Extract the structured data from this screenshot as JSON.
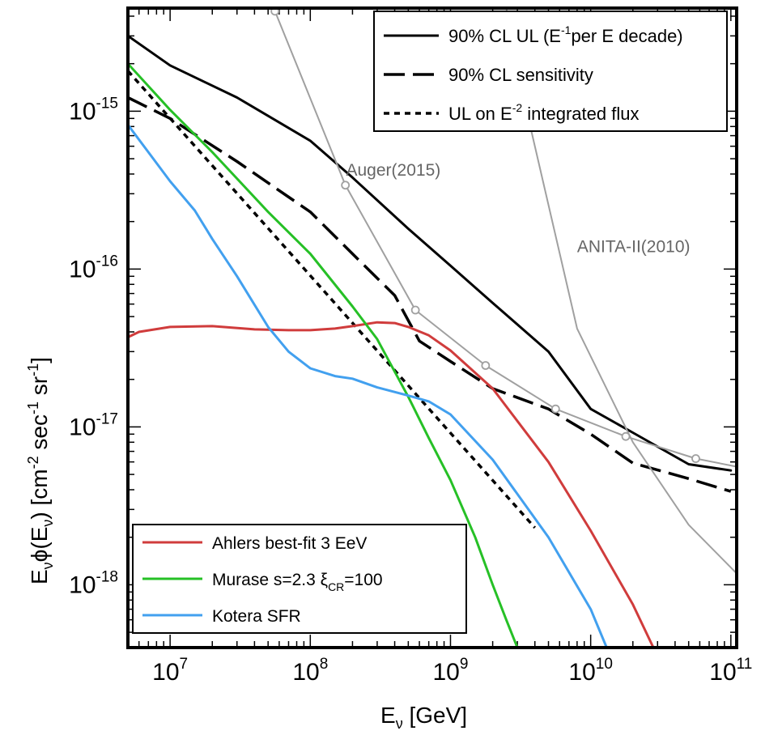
{
  "chart_data": {
    "type": "line",
    "xlabel": {
      "main": "E",
      "sub": "ν",
      "rest": " [GeV]"
    },
    "ylabel": {
      "p1": "E",
      "s1": "ν",
      "p2": "ϕ(E",
      "s2": "ν",
      "p3": ") [cm",
      "e1": "-2",
      "p4": " sec",
      "e2": "-1",
      "p5": " sr",
      "e3": "-1",
      "p6": "]"
    },
    "x_scale": "log",
    "y_scale": "log",
    "xlim": [
      5000000,
      110000000000
    ],
    "ylim": [
      4e-19,
      4.5e-15
    ],
    "x_ticks": [
      {
        "value": 10000000,
        "base": "10",
        "exp": "7"
      },
      {
        "value": 100000000,
        "base": "10",
        "exp": "8"
      },
      {
        "value": 1000000000,
        "base": "10",
        "exp": "9"
      },
      {
        "value": 10000000000,
        "base": "10",
        "exp": "10"
      },
      {
        "value": 100000000000,
        "base": "10",
        "exp": "11"
      }
    ],
    "y_ticks": [
      {
        "value": 1e-18,
        "base": "10",
        "exp": "-18"
      },
      {
        "value": 1e-17,
        "base": "10",
        "exp": "-17"
      },
      {
        "value": 1e-16,
        "base": "10",
        "exp": "-16"
      },
      {
        "value": 1e-15,
        "base": "10",
        "exp": "-15"
      }
    ],
    "legend_top": [
      {
        "series": "ul",
        "parts": [
          {
            "t": "90% CL UL (E"
          },
          {
            "t": "-1",
            "sup": true
          },
          {
            "t": "per E decade)"
          }
        ]
      },
      {
        "series": "sens",
        "parts": [
          {
            "t": "90% CL sensitivity"
          }
        ]
      },
      {
        "series": "int",
        "parts": [
          {
            "t": "UL on E"
          },
          {
            "t": "-2",
            "sup": true
          },
          {
            "t": " integrated flux"
          }
        ]
      }
    ],
    "legend_bottom": [
      {
        "series": "ahlers",
        "parts": [
          {
            "t": "Ahlers best-fit 3 EeV"
          }
        ]
      },
      {
        "series": "murase",
        "parts": [
          {
            "t": "Murase s=2.3 ξ"
          },
          {
            "t": "CR",
            "sub": true
          },
          {
            "t": "=100"
          }
        ]
      },
      {
        "series": "kotera",
        "parts": [
          {
            "t": "Kotera SFR"
          }
        ]
      }
    ],
    "annotations": [
      {
        "text": "Auger(2015)",
        "x": 180000000,
        "y": 3.9e-16
      },
      {
        "text": "ANITA-II(2010)",
        "x": 8000000000,
        "y": 1.28e-16
      }
    ],
    "series": [
      {
        "id": "ul",
        "color": "#000000",
        "style": "solid",
        "width": 3,
        "markers": false,
        "x": [
          5000000,
          10000000,
          30000000,
          100000000,
          200000000,
          500000000,
          1000000000,
          2000000000,
          5000000000,
          10000000000,
          20000000000,
          50000000000,
          100000000000
        ],
        "y": [
          3e-15,
          1.95e-15,
          1.22e-15,
          6.5e-16,
          3.8e-16,
          1.8e-16,
          1.05e-16,
          6.1e-17,
          3e-17,
          1.3e-17,
          9.2e-18,
          5.8e-18,
          5.3e-18
        ]
      },
      {
        "id": "sens",
        "color": "#000000",
        "style": "dashed",
        "width": 3.5,
        "markers": false,
        "x": [
          5000000,
          10000000,
          30000000,
          100000000,
          200000000,
          400000000,
          600000000,
          1000000000,
          2000000000,
          5000000000,
          10000000000,
          20000000000,
          50000000000,
          100000000000
        ],
        "y": [
          1.22e-15,
          9e-16,
          4.8e-16,
          2.3e-16,
          1.25e-16,
          6.8e-17,
          3.5e-17,
          2.6e-17,
          1.75e-17,
          1.3e-17,
          9e-18,
          5.9e-18,
          4.7e-18,
          3.9e-18
        ]
      },
      {
        "id": "int",
        "color": "#000000",
        "style": "dotted",
        "width": 3.5,
        "markers": false,
        "x": [
          5000000,
          4000000000
        ],
        "y": [
          1.8e-15,
          2.3e-18
        ]
      },
      {
        "id": "auger",
        "color": "#a0a0a0",
        "style": "solid",
        "width": 2,
        "markers": true,
        "x": [
          56000000,
          178000000,
          562000000,
          1780000000,
          5620000000,
          17800000000,
          56200000000,
          110000000000
        ],
        "y": [
          4.3e-15,
          3.4e-16,
          5.5e-17,
          2.45e-17,
          1.3e-17,
          8.7e-18,
          6.3e-18,
          5.6e-18
        ]
      },
      {
        "id": "anita",
        "color": "#a0a0a0",
        "style": "solid",
        "width": 2,
        "markers": false,
        "x": [
          2500000000,
          3500000000,
          8000000000,
          20000000000,
          50000000000,
          110000000000
        ],
        "y": [
          4.5e-15,
          1e-15,
          4.2e-17,
          8e-18,
          2.4e-18,
          1.18e-18
        ]
      },
      {
        "id": "ahlers",
        "color": "#d03c3c",
        "style": "solid",
        "width": 3,
        "markers": false,
        "x": [
          5000000,
          6000000,
          10000000,
          20000000,
          40000000,
          70000000,
          100000000,
          150000000,
          200000000,
          300000000,
          400000000,
          500000000,
          700000000,
          1000000000,
          2000000000,
          5000000000,
          10000000000,
          20000000000,
          28000000000
        ],
        "y": [
          3.7e-17,
          4e-17,
          4.3e-17,
          4.35e-17,
          4.15e-17,
          4.1e-17,
          4.1e-17,
          4.2e-17,
          4.35e-17,
          4.6e-17,
          4.55e-17,
          4.3e-17,
          3.8e-17,
          3.05e-17,
          1.75e-17,
          6e-18,
          2.2e-18,
          7.5e-19,
          4e-19
        ]
      },
      {
        "id": "murase",
        "color": "#26c026",
        "style": "solid",
        "width": 3,
        "markers": false,
        "x": [
          5000000,
          10000000,
          20000000,
          50000000,
          100000000,
          200000000,
          300000000,
          500000000,
          700000000,
          1000000000,
          1500000000,
          2000000000,
          2500000000,
          3000000000
        ],
        "y": [
          2e-15,
          1.02e-15,
          5.5e-16,
          2.3e-16,
          1.25e-16,
          5.8e-17,
          3.6e-17,
          1.55e-17,
          8.5e-18,
          4.6e-18,
          2e-18,
          1e-18,
          6e-19,
          4e-19
        ]
      },
      {
        "id": "kotera",
        "color": "#42a0ef",
        "style": "solid",
        "width": 3,
        "markers": false,
        "x": [
          5000000,
          7000000,
          10000000,
          15000000,
          20000000,
          30000000,
          50000000,
          70000000,
          100000000,
          150000000,
          200000000,
          300000000,
          500000000,
          700000000,
          1000000000,
          2000000000,
          5000000000,
          10000000000,
          13000000000
        ],
        "y": [
          8.2e-16,
          5.5e-16,
          3.6e-16,
          2.35e-16,
          1.55e-16,
          9e-17,
          4.3e-17,
          3e-17,
          2.35e-17,
          2.1e-17,
          2.02e-17,
          1.78e-17,
          1.58e-17,
          1.45e-17,
          1.2e-17,
          6.2e-18,
          2e-18,
          7e-19,
          4e-19
        ]
      }
    ]
  }
}
